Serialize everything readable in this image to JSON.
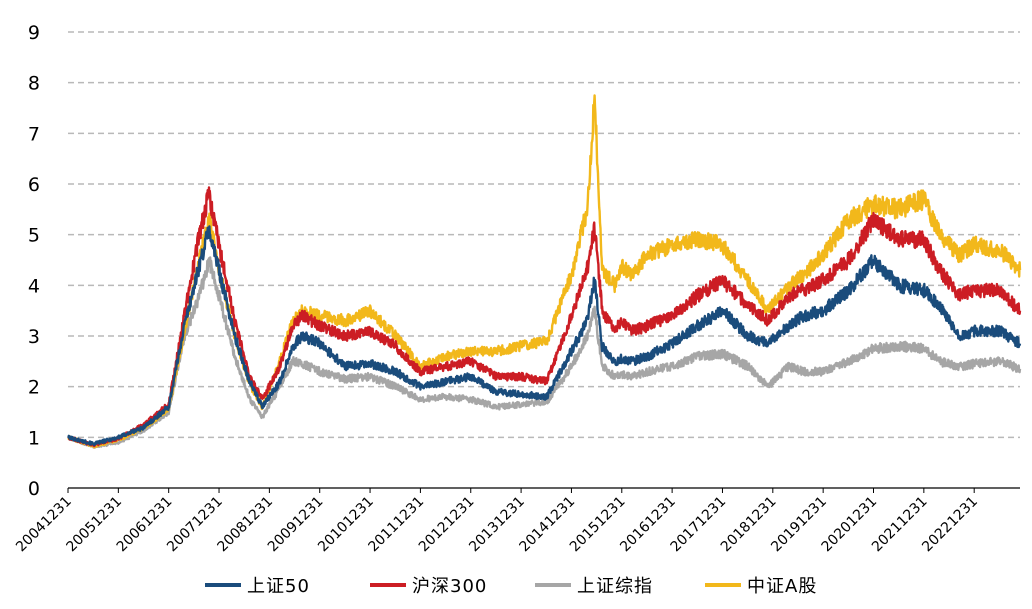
{
  "chart_data": {
    "type": "line",
    "title": "",
    "xlabel": "",
    "ylabel": "",
    "ylim": [
      0,
      9
    ],
    "yticks": [
      0,
      1,
      2,
      3,
      4,
      5,
      6,
      7,
      8,
      9
    ],
    "grid": "horizontal dashed",
    "legend_position": "bottom",
    "x_tick_labels": [
      "20041231",
      "20051231",
      "20061231",
      "20071231",
      "20081231",
      "20091231",
      "20101231",
      "20111231",
      "20121231",
      "20131231",
      "20141231",
      "20151231",
      "20161231",
      "20171231",
      "20181231",
      "20191231",
      "20201231",
      "20211231",
      "20221231"
    ],
    "x_anchor_years": [
      2004.99,
      2005.5,
      2005.99,
      2006.5,
      2006.99,
      2007.3,
      2007.6,
      2007.79,
      2007.99,
      2008.3,
      2008.6,
      2008.85,
      2009.2,
      2009.45,
      2009.65,
      2009.99,
      2010.5,
      2010.99,
      2011.5,
      2011.99,
      2012.5,
      2012.99,
      2013.5,
      2013.99,
      2014.5,
      2014.99,
      2015.3,
      2015.45,
      2015.6,
      2015.85,
      2015.99,
      2016.2,
      2016.5,
      2016.99,
      2017.5,
      2017.99,
      2018.5,
      2018.9,
      2019.3,
      2019.6,
      2019.99,
      2020.5,
      2020.99,
      2021.5,
      2021.99,
      2022.3,
      2022.7,
      2022.99,
      2023.5,
      2023.9
    ],
    "series": [
      {
        "name": "上证50",
        "color": "#1a4c7c",
        "values": [
          1.0,
          0.87,
          1.0,
          1.2,
          1.6,
          3.2,
          4.4,
          5.1,
          4.3,
          3.0,
          2.1,
          1.6,
          2.1,
          2.8,
          3.0,
          2.85,
          2.4,
          2.45,
          2.3,
          2.0,
          2.1,
          2.2,
          1.9,
          1.85,
          1.8,
          2.7,
          3.3,
          4.1,
          2.8,
          2.5,
          2.55,
          2.5,
          2.6,
          2.85,
          3.2,
          3.5,
          3.0,
          2.85,
          3.2,
          3.4,
          3.5,
          3.9,
          4.5,
          4.0,
          3.9,
          3.6,
          3.0,
          3.1,
          3.1,
          2.85
        ]
      },
      {
        "name": "沪深300",
        "color": "#cc1d24",
        "values": [
          1.0,
          0.85,
          0.98,
          1.25,
          1.65,
          3.4,
          5.0,
          5.8,
          4.8,
          3.3,
          2.2,
          1.75,
          2.4,
          3.2,
          3.4,
          3.2,
          3.0,
          3.1,
          2.8,
          2.3,
          2.4,
          2.5,
          2.2,
          2.2,
          2.1,
          3.4,
          4.3,
          5.2,
          3.5,
          3.1,
          3.3,
          3.1,
          3.2,
          3.4,
          3.8,
          4.1,
          3.6,
          3.3,
          3.8,
          3.9,
          4.1,
          4.5,
          5.3,
          4.9,
          4.9,
          4.3,
          3.8,
          3.9,
          3.9,
          3.5
        ]
      },
      {
        "name": "上证综指",
        "color": "#a6a6a6",
        "values": [
          1.0,
          0.82,
          0.9,
          1.15,
          1.5,
          3.0,
          3.8,
          4.5,
          3.8,
          2.6,
          1.75,
          1.4,
          2.0,
          2.5,
          2.45,
          2.3,
          2.15,
          2.2,
          2.0,
          1.75,
          1.8,
          1.75,
          1.6,
          1.65,
          1.7,
          2.4,
          3.0,
          3.5,
          2.4,
          2.2,
          2.25,
          2.2,
          2.3,
          2.4,
          2.6,
          2.65,
          2.4,
          2.0,
          2.4,
          2.3,
          2.3,
          2.5,
          2.75,
          2.8,
          2.75,
          2.5,
          2.4,
          2.45,
          2.5,
          2.35
        ]
      },
      {
        "name": "中证A股",
        "color": "#f2b81b",
        "values": [
          1.0,
          0.83,
          0.95,
          1.2,
          1.55,
          3.1,
          4.5,
          5.3,
          4.3,
          3.0,
          2.05,
          1.6,
          2.5,
          3.3,
          3.5,
          3.4,
          3.3,
          3.5,
          3.0,
          2.4,
          2.6,
          2.7,
          2.7,
          2.8,
          2.9,
          4.2,
          5.5,
          7.7,
          4.3,
          4.0,
          4.4,
          4.2,
          4.6,
          4.8,
          4.9,
          4.8,
          4.1,
          3.5,
          4.0,
          4.2,
          4.6,
          5.3,
          5.6,
          5.5,
          5.7,
          5.0,
          4.6,
          4.8,
          4.7,
          4.3
        ]
      }
    ]
  }
}
